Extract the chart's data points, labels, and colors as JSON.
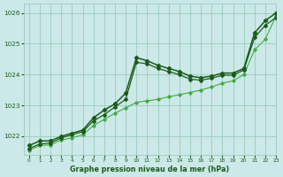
{
  "title": "Graphe pression niveau de la mer (hPa)",
  "xlim": [
    -0.5,
    23
  ],
  "ylim": [
    1021.4,
    1026.3
  ],
  "yticks": [
    1022,
    1023,
    1024,
    1025,
    1026
  ],
  "xticks": [
    0,
    1,
    2,
    3,
    4,
    5,
    6,
    7,
    8,
    9,
    10,
    11,
    12,
    13,
    14,
    15,
    16,
    17,
    18,
    19,
    20,
    21,
    22,
    23
  ],
  "bg_color": "#cce8e8",
  "grid_color": "#99ccbb",
  "line_color_main": "#1a5c1a",
  "line_color_light": "#44aa44",
  "series1_x": [
    0,
    1,
    2,
    3,
    4,
    5,
    6,
    7,
    8,
    9,
    10,
    11,
    12,
    13,
    14,
    15,
    16,
    17,
    18,
    19,
    20,
    21,
    22,
    23
  ],
  "series1_y": [
    1021.7,
    1021.85,
    1021.85,
    1022.0,
    1022.1,
    1022.2,
    1022.6,
    1022.85,
    1023.05,
    1023.4,
    1024.55,
    1024.45,
    1024.3,
    1024.2,
    1024.1,
    1023.95,
    1023.9,
    1023.95,
    1024.05,
    1024.05,
    1024.2,
    1025.35,
    1025.75,
    1026.0
  ],
  "series2_x": [
    0,
    1,
    2,
    3,
    4,
    5,
    6,
    7,
    8,
    9,
    10,
    11,
    12,
    13,
    14,
    15,
    16,
    17,
    18,
    19,
    20,
    21,
    22,
    23
  ],
  "series2_y": [
    1021.6,
    1021.75,
    1021.78,
    1021.95,
    1022.05,
    1022.15,
    1022.5,
    1022.7,
    1022.95,
    1023.2,
    1024.4,
    1024.35,
    1024.2,
    1024.1,
    1024.0,
    1023.85,
    1023.82,
    1023.88,
    1023.98,
    1023.98,
    1024.15,
    1025.2,
    1025.6,
    1025.85
  ],
  "series3_x": [
    0,
    1,
    2,
    3,
    4,
    5,
    6,
    7,
    8,
    9,
    10,
    11,
    12,
    13,
    14,
    15,
    16,
    17,
    18,
    19,
    20,
    21,
    22,
    23
  ],
  "series3_y": [
    1021.55,
    1021.7,
    1021.72,
    1021.88,
    1021.95,
    1022.05,
    1022.35,
    1022.55,
    1022.75,
    1022.92,
    1023.1,
    1023.15,
    1023.2,
    1023.28,
    1023.35,
    1023.42,
    1023.5,
    1023.6,
    1023.72,
    1023.8,
    1024.0,
    1024.8,
    1025.15,
    1025.9
  ]
}
